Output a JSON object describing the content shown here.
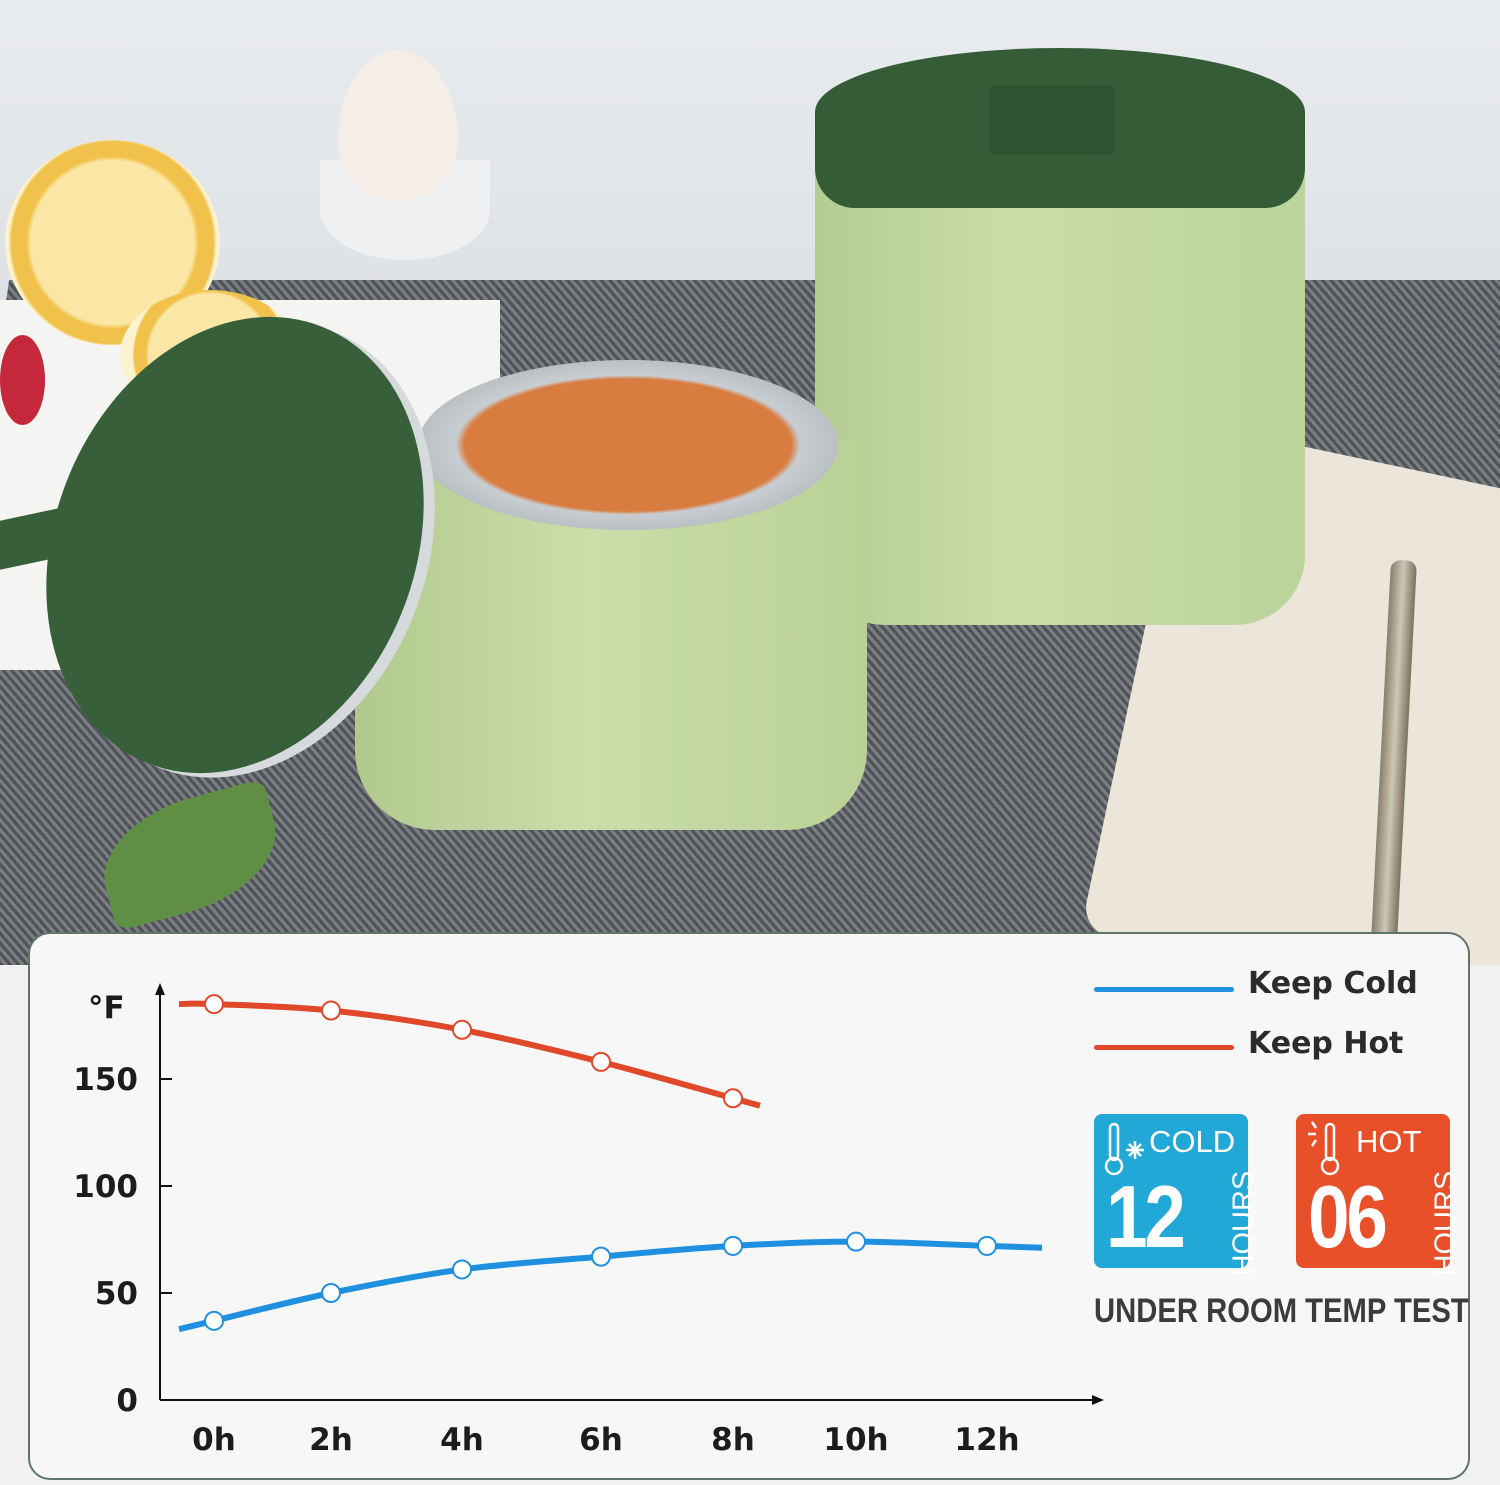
{
  "chart_data": {
    "type": "line",
    "ylabel": "°F",
    "x": [
      "0h",
      "2h",
      "4h",
      "6h",
      "8h",
      "10h",
      "12h"
    ],
    "yticks": [
      "0",
      "50",
      "100",
      "150"
    ],
    "ylim": [
      0,
      190
    ],
    "grid": false,
    "legend_placement": "top-right",
    "series": [
      {
        "name": "Keep Cold",
        "color": "#1f8fe0",
        "values": [
          37,
          50,
          61,
          67,
          72,
          74,
          72
        ]
      },
      {
        "name": "Keep Hot",
        "color": "#e0482a",
        "values": [
          185,
          182,
          173,
          158,
          141,
          null,
          null
        ]
      }
    ]
  },
  "badges": [
    {
      "label": "COLD",
      "number": "12",
      "unit": "HOURS",
      "color": "#21a8d6",
      "icon": "thermometer-snowflake-icon"
    },
    {
      "label": "HOT",
      "number": "06",
      "unit": "HOURS",
      "color": "#e8502a",
      "icon": "thermometer-sun-icon"
    }
  ],
  "footer": "UNDER ROOM TEMP TEST"
}
